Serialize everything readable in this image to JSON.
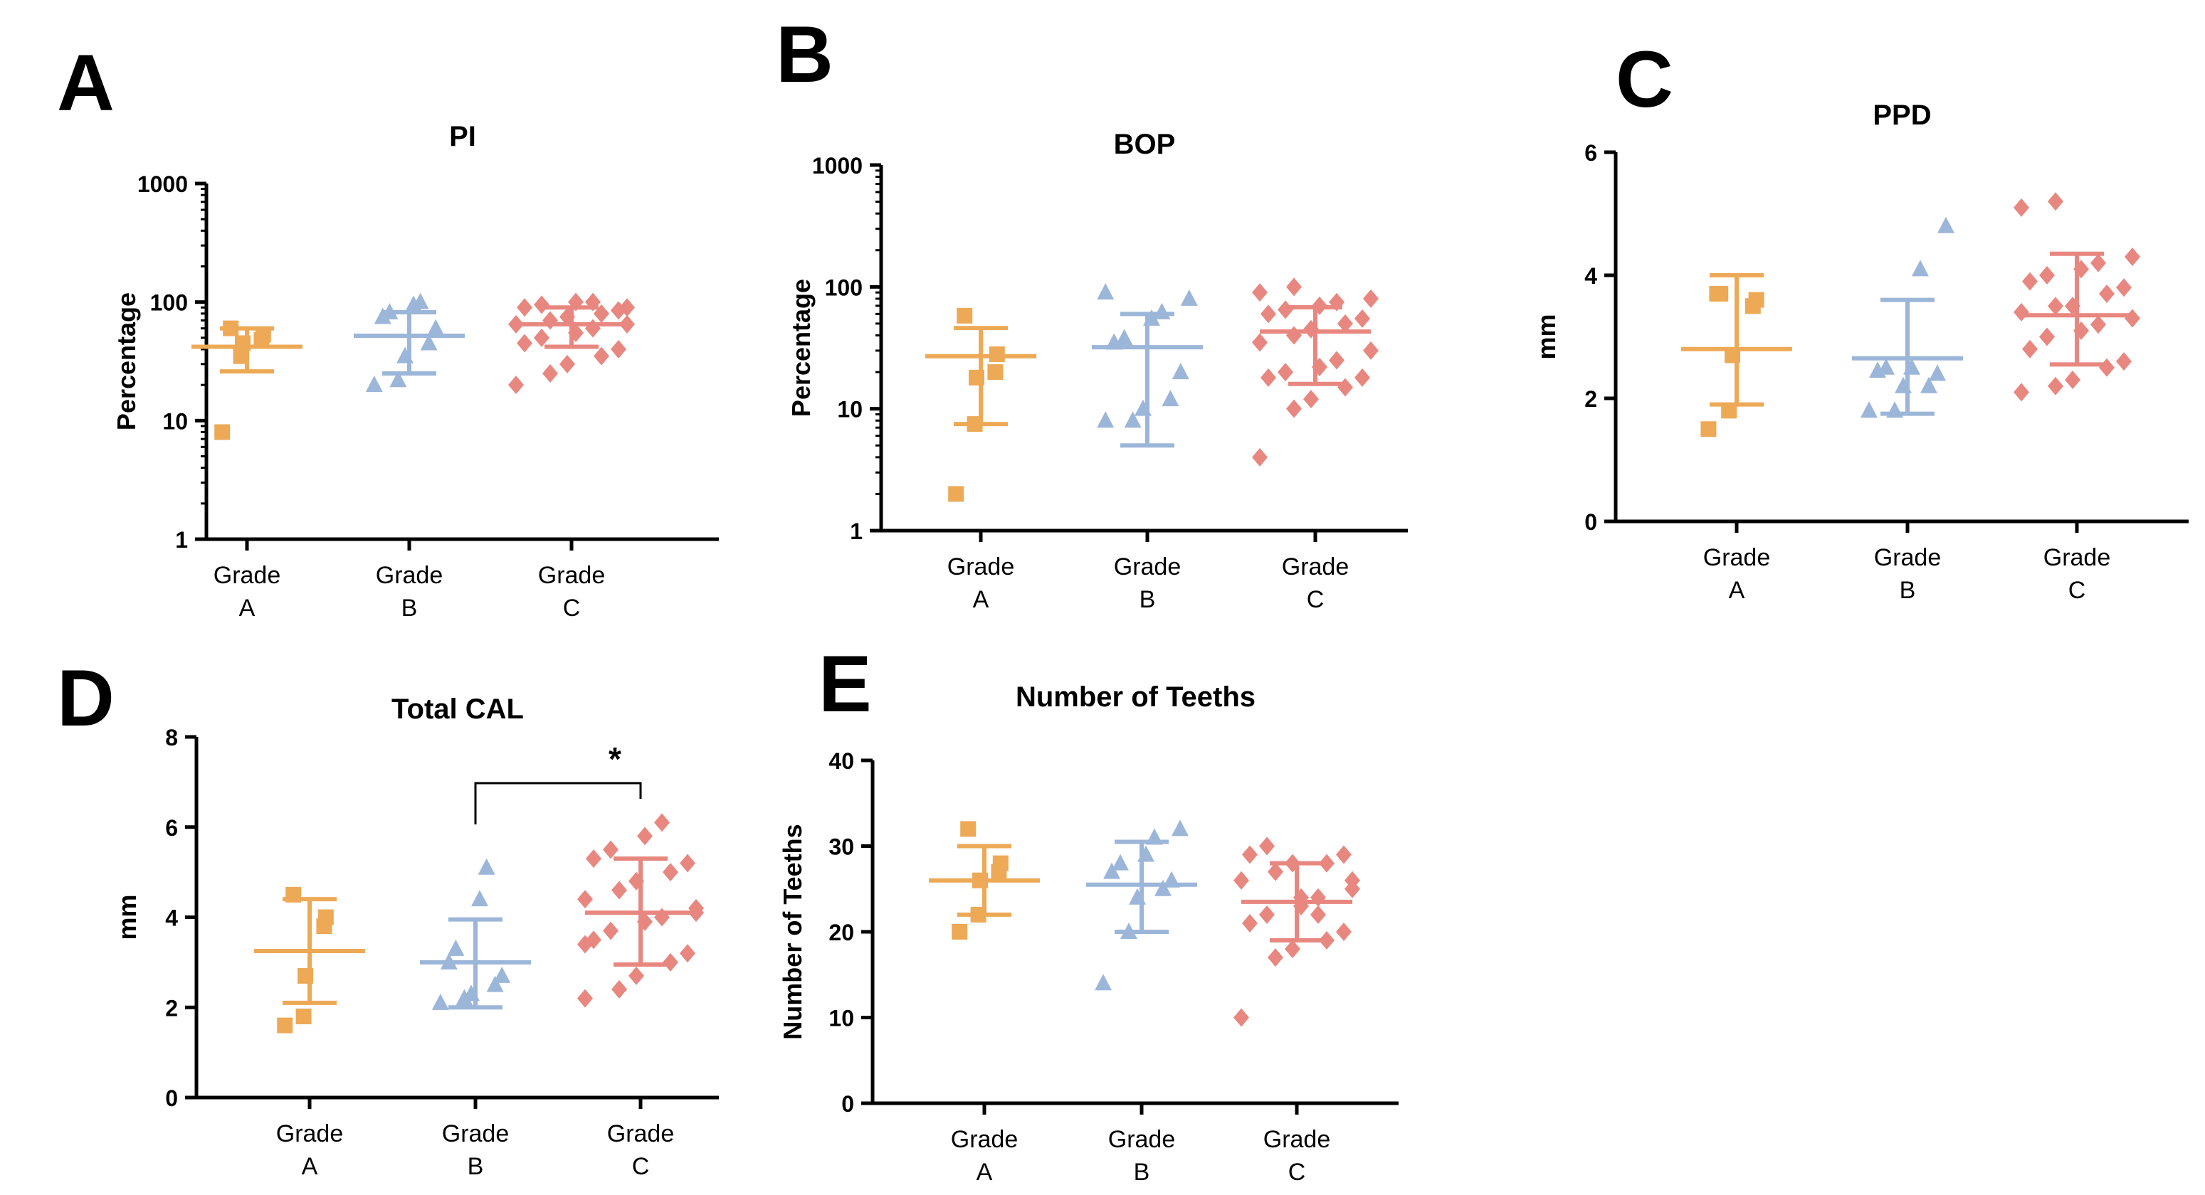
{
  "colors": {
    "grade_a": "#EDA956",
    "grade_b": "#9BB6D8",
    "grade_c": "#E8877F",
    "axis": "#000000"
  },
  "chart_data": [
    {
      "panel": "A",
      "type": "scatter",
      "title": "PI",
      "ylabel": "Percentage",
      "xlabel": "",
      "yscale": "log",
      "ylim": [
        1,
        1000
      ],
      "yticks": [
        "1",
        "10",
        "100",
        "1000"
      ],
      "categories": [
        [
          "Grade",
          "A"
        ],
        [
          "Grade",
          "B"
        ],
        [
          "Grade",
          "C"
        ]
      ],
      "series": [
        {
          "marker": "square",
          "color": "grade_a",
          "mean": 42,
          "sd": [
            26,
            60
          ],
          "points": [
            8,
            35,
            45,
            48,
            53,
            60
          ]
        },
        {
          "marker": "triangle",
          "color": "grade_b",
          "mean": 52,
          "sd": [
            25,
            82
          ],
          "points": [
            20,
            22,
            35,
            45,
            60,
            75,
            82,
            95,
            100
          ]
        },
        {
          "marker": "diamond",
          "color": "grade_c",
          "mean": 65,
          "sd": [
            42,
            90
          ],
          "points": [
            20,
            25,
            30,
            35,
            40,
            45,
            50,
            55,
            60,
            65,
            65,
            70,
            75,
            80,
            85,
            90,
            95,
            100,
            100,
            90
          ]
        }
      ]
    },
    {
      "panel": "B",
      "type": "scatter",
      "title": "BOP",
      "ylabel": "Percentage",
      "xlabel": "",
      "yscale": "log",
      "ylim": [
        1,
        1000
      ],
      "yticks": [
        "1",
        "10",
        "100",
        "1000"
      ],
      "categories": [
        [
          "Grade",
          "A"
        ],
        [
          "Grade",
          "B"
        ],
        [
          "Grade",
          "C"
        ]
      ],
      "series": [
        {
          "marker": "square",
          "color": "grade_a",
          "mean": 27,
          "sd": [
            7.5,
            46
          ],
          "points": [
            2,
            7.5,
            18,
            20,
            28,
            58
          ]
        },
        {
          "marker": "triangle",
          "color": "grade_b",
          "mean": 32,
          "sd": [
            5,
            60
          ],
          "points": [
            8,
            8,
            10,
            12,
            20,
            35,
            38,
            55,
            62,
            80,
            90
          ]
        },
        {
          "marker": "diamond",
          "color": "grade_c",
          "mean": 43,
          "sd": [
            16,
            68
          ],
          "points": [
            4,
            10,
            12,
            15,
            18,
            18,
            20,
            22,
            25,
            30,
            35,
            40,
            45,
            50,
            55,
            60,
            65,
            70,
            75,
            80,
            90,
            100
          ]
        }
      ]
    },
    {
      "panel": "C",
      "type": "scatter",
      "title": "PPD",
      "ylabel": "mm",
      "xlabel": "",
      "yscale": "linear",
      "ylim": [
        0,
        6
      ],
      "yticks": [
        "0",
        "2",
        "4",
        "6"
      ],
      "categories": [
        [
          "Grade",
          "A"
        ],
        [
          "Grade",
          "B"
        ],
        [
          "Grade",
          "C"
        ]
      ],
      "series": [
        {
          "marker": "square",
          "color": "grade_a",
          "mean": 2.8,
          "sd": [
            1.9,
            4.0
          ],
          "points": [
            1.5,
            1.8,
            2.7,
            3.5,
            3.6,
            3.7,
            3.7
          ]
        },
        {
          "marker": "triangle",
          "color": "grade_b",
          "mean": 2.65,
          "sd": [
            1.75,
            3.6
          ],
          "points": [
            1.8,
            1.8,
            2.2,
            2.2,
            2.4,
            2.45,
            2.5,
            2.5,
            4.1,
            4.8
          ]
        },
        {
          "marker": "diamond",
          "color": "grade_c",
          "mean": 3.35,
          "sd": [
            2.55,
            4.35
          ],
          "points": [
            2.1,
            2.2,
            2.3,
            2.5,
            2.6,
            2.8,
            3.0,
            3.1,
            3.2,
            3.3,
            3.4,
            3.5,
            3.5,
            3.7,
            3.8,
            3.9,
            4.0,
            4.1,
            4.2,
            4.3,
            5.1,
            5.2
          ]
        }
      ]
    },
    {
      "panel": "D",
      "type": "scatter",
      "title": "Total CAL",
      "ylabel": "mm",
      "xlabel": "",
      "yscale": "linear",
      "ylim": [
        0,
        8
      ],
      "yticks": [
        "0",
        "2",
        "4",
        "6",
        "8"
      ],
      "categories": [
        [
          "Grade",
          "A"
        ],
        [
          "Grade",
          "B"
        ],
        [
          "Grade",
          "C"
        ]
      ],
      "significance": {
        "from": 1,
        "to": 2,
        "label": "*"
      },
      "series": [
        {
          "marker": "square",
          "color": "grade_a",
          "mean": 3.25,
          "sd": [
            2.1,
            4.4
          ],
          "points": [
            1.6,
            1.8,
            2.7,
            3.8,
            4.0,
            4.5
          ]
        },
        {
          "marker": "triangle",
          "color": "grade_b",
          "mean": 3.0,
          "sd": [
            2.0,
            3.95
          ],
          "points": [
            2.1,
            2.2,
            2.3,
            2.5,
            2.7,
            3.0,
            3.3,
            4.4,
            5.1
          ]
        },
        {
          "marker": "diamond",
          "color": "grade_c",
          "mean": 4.1,
          "sd": [
            2.95,
            5.3
          ],
          "points": [
            2.2,
            2.4,
            2.7,
            3.0,
            3.2,
            3.5,
            3.7,
            3.9,
            4.0,
            4.2,
            4.4,
            4.6,
            4.8,
            5.0,
            5.2,
            5.3,
            5.5,
            5.8,
            6.1,
            4.1,
            3.4
          ]
        }
      ]
    },
    {
      "panel": "E",
      "type": "scatter",
      "title": "Number of Teeths",
      "ylabel": "Number of Teeths",
      "xlabel": "",
      "yscale": "linear",
      "ylim": [
        0,
        40
      ],
      "yticks": [
        "0",
        "10",
        "20",
        "30",
        "40"
      ],
      "categories": [
        [
          "Grade",
          "A"
        ],
        [
          "Grade",
          "B"
        ],
        [
          "Grade",
          "C"
        ]
      ],
      "series": [
        {
          "marker": "square",
          "color": "grade_a",
          "mean": 26,
          "sd": [
            22,
            30
          ],
          "points": [
            20,
            22,
            26,
            27,
            28,
            32
          ]
        },
        {
          "marker": "triangle",
          "color": "grade_b",
          "mean": 25.5,
          "sd": [
            20,
            30.5
          ],
          "points": [
            14,
            20,
            24,
            25,
            26,
            27,
            28,
            29,
            31,
            32
          ]
        },
        {
          "marker": "diamond",
          "color": "grade_c",
          "mean": 23.5,
          "sd": [
            19,
            28
          ],
          "points": [
            10,
            17,
            18,
            19,
            20,
            21,
            22,
            23,
            24,
            25,
            26,
            27,
            28,
            28,
            29,
            29,
            30,
            24,
            22,
            26
          ]
        }
      ]
    }
  ]
}
